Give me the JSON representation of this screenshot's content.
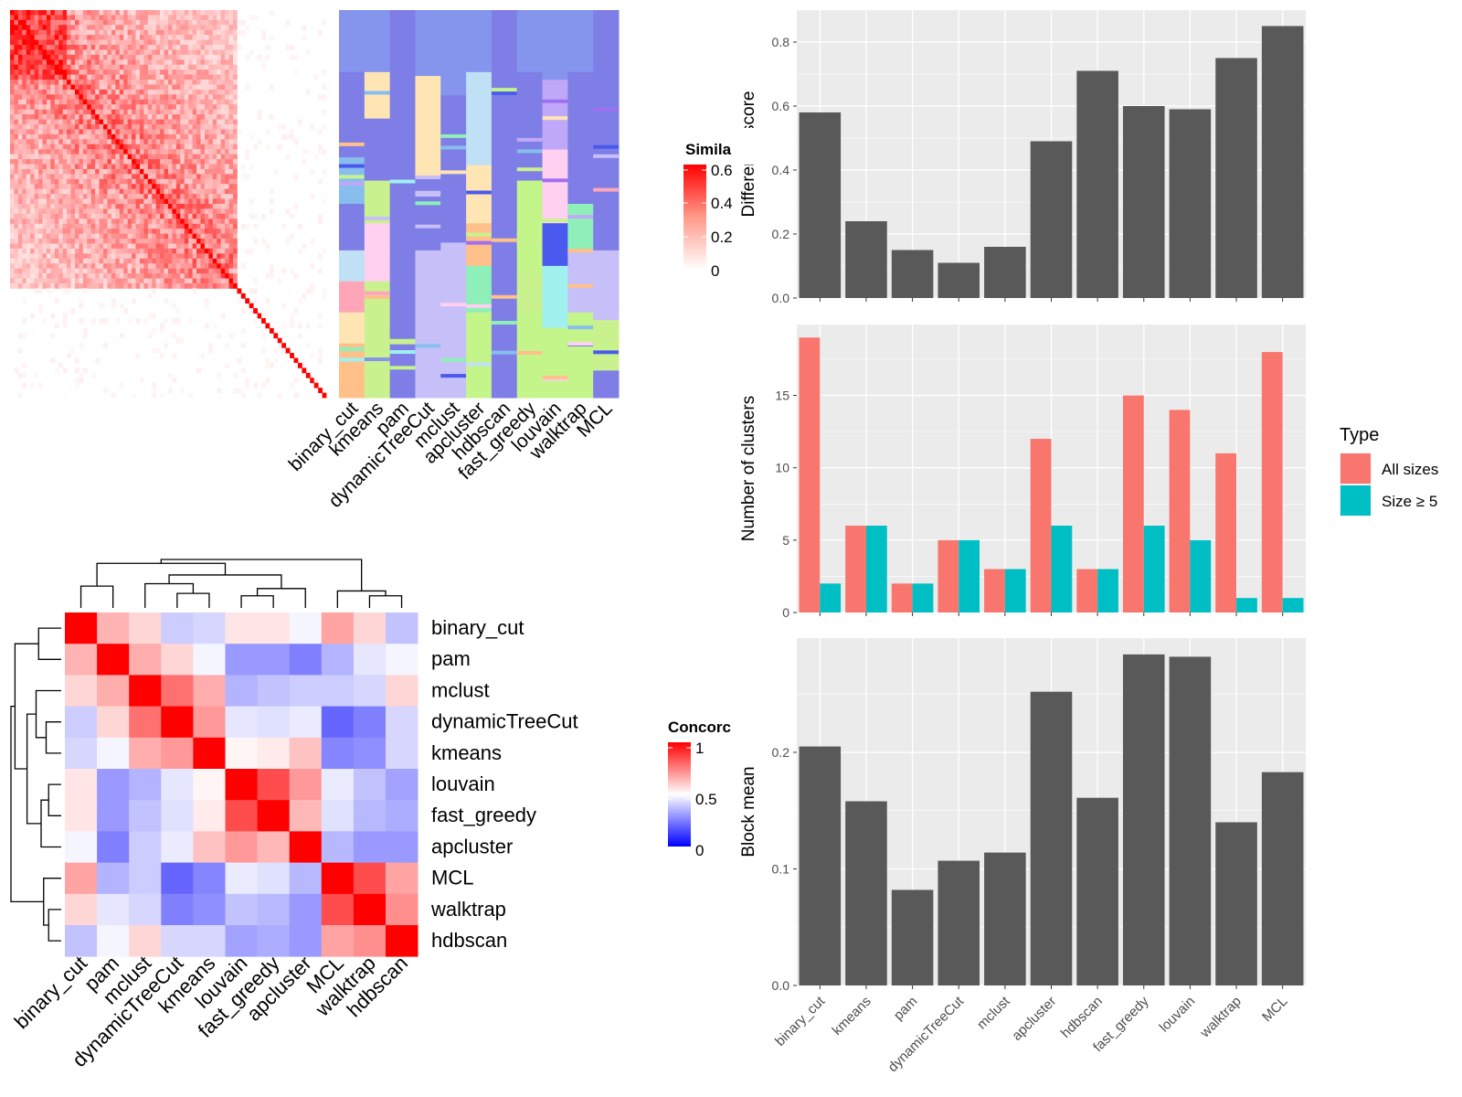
{
  "methods": [
    "binary_cut",
    "kmeans",
    "pam",
    "dynamicTreeCut",
    "mclust",
    "apcluster",
    "hdbscan",
    "fast_greedy",
    "louvain",
    "walktrap",
    "MCL"
  ],
  "colors": {
    "bar_gray": "#595959",
    "panel_bg": "#ebebeb",
    "all_sizes": "#F8766D",
    "size_ge5": "#00BFC4",
    "heat_red": "#FF0000",
    "heat_white": "#FFFFFF",
    "heat_blue": "#0000FF",
    "cluster_palette": [
      "#8595EE",
      "#7E7EE6",
      "#FFE5B4",
      "#BFE0F5",
      "#87BEEE",
      "#C7BFF8",
      "#C9F28E",
      "#FFC08A",
      "#8EF0B8",
      "#FFA5B8",
      "#C0A8F8",
      "#FFD0F0",
      "#A0F0F0",
      "#C4F58A",
      "#4A59EE",
      "#A070F0"
    ]
  },
  "similarity_panel": {
    "legend_title": "Simila",
    "legend_ticks": [
      "0.6",
      "0.4",
      "0.2",
      "0"
    ]
  },
  "concordance_panel": {
    "legend_title": "Concorc",
    "legend_ticks": [
      "1",
      "0.5",
      "0"
    ],
    "order": [
      "binary_cut",
      "pam",
      "mclust",
      "dynamicTreeCut",
      "kmeans",
      "louvain",
      "fast_greedy",
      "apcluster",
      "MCL",
      "walktrap",
      "hdbscan"
    ]
  },
  "chart_data": [
    {
      "type": "bar",
      "categories": [
        "binary_cut",
        "kmeans",
        "pam",
        "dynamicTreeCut",
        "mclust",
        "apcluster",
        "hdbscan",
        "fast_greedy",
        "louvain",
        "walktrap",
        "MCL"
      ],
      "values": [
        0.58,
        0.24,
        0.15,
        0.11,
        0.16,
        0.49,
        0.71,
        0.6,
        0.59,
        0.75,
        0.85
      ],
      "title": "",
      "xlabel": "",
      "ylabel": "Difference score",
      "ylim": [
        0,
        0.9
      ],
      "yticks": [
        "0.0",
        "0.2",
        "0.4",
        "0.6",
        "0.8"
      ],
      "grid": true
    },
    {
      "type": "bar",
      "categories": [
        "binary_cut",
        "kmeans",
        "pam",
        "dynamicTreeCut",
        "mclust",
        "apcluster",
        "hdbscan",
        "fast_greedy",
        "louvain",
        "walktrap",
        "MCL"
      ],
      "series": [
        {
          "name": "All sizes",
          "values": [
            19,
            6,
            2,
            5,
            3,
            12,
            3,
            15,
            14,
            11,
            18
          ]
        },
        {
          "name": "Size ≥ 5",
          "values": [
            2,
            6,
            2,
            5,
            3,
            6,
            3,
            6,
            5,
            1,
            1
          ]
        }
      ],
      "title": "",
      "xlabel": "",
      "ylabel": "Number of clusters",
      "ylim": [
        0,
        19.9
      ],
      "yticks": [
        "0",
        "5",
        "10",
        "15"
      ],
      "legend_title": "Type",
      "legend_position": "right",
      "grid": true
    },
    {
      "type": "bar",
      "categories": [
        "binary_cut",
        "kmeans",
        "pam",
        "dynamicTreeCut",
        "mclust",
        "apcluster",
        "hdbscan",
        "fast_greedy",
        "louvain",
        "walktrap",
        "MCL"
      ],
      "values": [
        0.205,
        0.158,
        0.082,
        0.107,
        0.114,
        0.252,
        0.161,
        0.284,
        0.282,
        0.14,
        0.183
      ],
      "title": "",
      "xlabel": "",
      "ylabel": "Block mean",
      "ylim": [
        0,
        0.298
      ],
      "yticks": [
        "0.0",
        "0.1",
        "0.2"
      ],
      "grid": true
    },
    {
      "type": "heatmap",
      "rows": [
        "binary_cut",
        "pam",
        "mclust",
        "dynamicTreeCut",
        "kmeans",
        "louvain",
        "fast_greedy",
        "apcluster",
        "MCL",
        "walktrap",
        "hdbscan"
      ],
      "cols": [
        "binary_cut",
        "pam",
        "mclust",
        "dynamicTreeCut",
        "kmeans",
        "louvain",
        "fast_greedy",
        "apcluster",
        "MCL",
        "walktrap",
        "hdbscan"
      ],
      "values": [
        [
          1.0,
          0.65,
          0.58,
          0.4,
          0.42,
          0.55,
          0.55,
          0.48,
          0.68,
          0.58,
          0.38
        ],
        [
          0.65,
          1.0,
          0.66,
          0.58,
          0.48,
          0.3,
          0.3,
          0.25,
          0.35,
          0.45,
          0.48
        ],
        [
          0.58,
          0.66,
          1.0,
          0.78,
          0.66,
          0.35,
          0.38,
          0.4,
          0.4,
          0.42,
          0.58
        ],
        [
          0.4,
          0.58,
          0.78,
          1.0,
          0.7,
          0.45,
          0.44,
          0.46,
          0.2,
          0.25,
          0.42
        ],
        [
          0.42,
          0.48,
          0.66,
          0.7,
          1.0,
          0.52,
          0.54,
          0.62,
          0.26,
          0.28,
          0.42
        ],
        [
          0.55,
          0.3,
          0.35,
          0.45,
          0.52,
          1.0,
          0.85,
          0.7,
          0.46,
          0.38,
          0.32
        ],
        [
          0.55,
          0.3,
          0.38,
          0.44,
          0.54,
          0.85,
          1.0,
          0.64,
          0.44,
          0.36,
          0.34
        ],
        [
          0.48,
          0.25,
          0.4,
          0.46,
          0.62,
          0.7,
          0.64,
          1.0,
          0.36,
          0.3,
          0.3
        ],
        [
          0.68,
          0.35,
          0.4,
          0.2,
          0.26,
          0.46,
          0.44,
          0.36,
          1.0,
          0.85,
          0.68
        ],
        [
          0.58,
          0.45,
          0.42,
          0.25,
          0.28,
          0.38,
          0.36,
          0.3,
          0.85,
          1.0,
          0.72
        ],
        [
          0.38,
          0.48,
          0.58,
          0.42,
          0.42,
          0.32,
          0.34,
          0.3,
          0.68,
          0.72,
          1.0
        ]
      ],
      "legend_title": "Concorc",
      "range": [
        0,
        1
      ]
    }
  ]
}
